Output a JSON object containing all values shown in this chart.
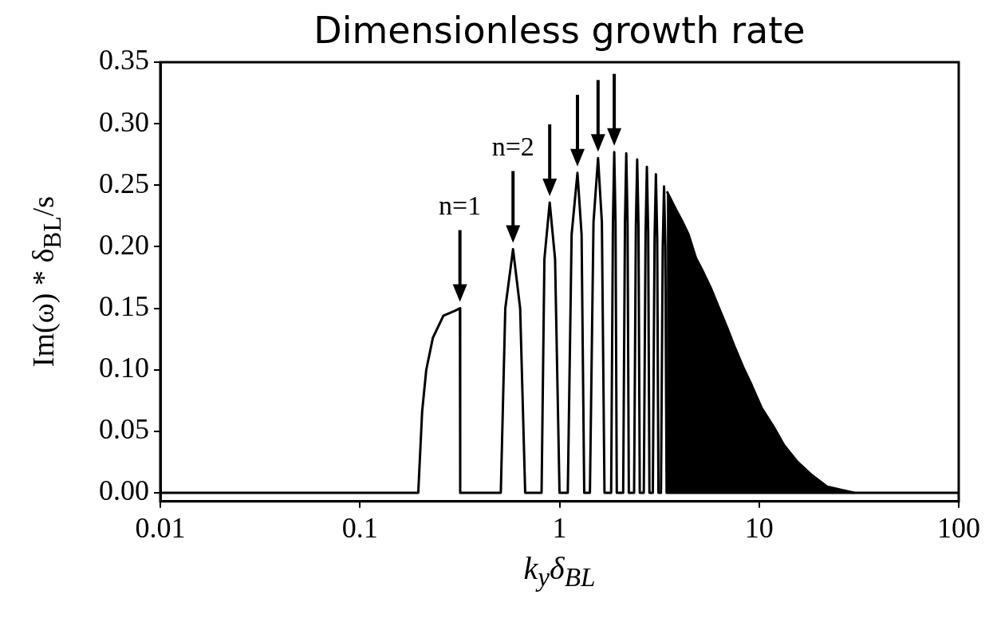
{
  "chart_data": {
    "type": "line",
    "title": "Dimensionless growth rate",
    "xlabel": "k$_{y}$δ$_{BL}$",
    "ylabel": "Im(ω) * δ$_{BL}$/s",
    "log": "x",
    "xlim": [
      0.01,
      100
    ],
    "xticks": [
      0.01,
      0.1,
      1,
      10,
      100
    ],
    "ylim": [
      -0.007,
      0.35
    ],
    "yticks": [
      {
        "value": 0,
        "label": "0.00"
      },
      {
        "value": 0.05,
        "label": "0.05"
      },
      {
        "value": 0.1,
        "label": "0.10"
      },
      {
        "value": 0.15,
        "label": "0.15"
      },
      {
        "value": 0.2,
        "label": "0.20"
      },
      {
        "value": 0.25,
        "label": "0.25"
      },
      {
        "value": 0.3,
        "label": "0.30"
      },
      {
        "value": 0.35,
        "label": "0.35"
      }
    ],
    "grid": false,
    "annotations": [
      "n=1",
      "n=2"
    ],
    "series": [
      {
        "color": "#000000",
        "x": [
          0.01,
          0.196,
          0.205,
          0.215,
          0.232,
          0.262,
          0.3,
          0.317,
          0.318,
          0.508,
          0.535,
          0.585,
          0.635,
          0.673,
          0.813,
          0.84,
          0.893,
          0.95,
          1.0,
          1.1,
          1.15,
          1.23,
          1.29,
          1.33,
          1.42,
          1.48,
          1.56,
          1.63,
          1.68,
          1.814,
          1.852,
          1.88,
          1.908,
          1.936,
          2.084,
          2.128,
          2.16,
          2.192,
          2.225,
          2.364,
          2.413,
          2.45,
          2.487,
          2.524,
          2.644,
          2.699,
          2.74,
          2.781,
          2.822,
          2.934,
          2.994,
          3.04,
          3.086,
          3.131,
          3.223,
          3.29,
          3.34,
          3.39,
          3.44,
          100
        ],
        "values": [
          0,
          0,
          0.066,
          0.1,
          0.126,
          0.144,
          0.148,
          0.15,
          0,
          0,
          0.15,
          0.198,
          0.15,
          0,
          0,
          0.19,
          0.236,
          0.19,
          0,
          0,
          0.21,
          0.26,
          0.21,
          0,
          0,
          0.22,
          0.272,
          0.22,
          0,
          0,
          0.22,
          0.277,
          0.22,
          0,
          0,
          0.22,
          0.276,
          0.22,
          0,
          0,
          0.217,
          0.271,
          0.217,
          0,
          0,
          0.212,
          0.265,
          0.212,
          0,
          0,
          0.207,
          0.259,
          0.207,
          0,
          0,
          0.2,
          0.249,
          0.2,
          0,
          0
        ]
      },
      {
        "type": "area",
        "color": "#000000",
        "x": [
          3.45,
          3.84,
          4.14,
          4.43,
          4.82,
          5.19,
          5.71,
          6.27,
          6.89,
          7.57,
          8.33,
          9.15,
          10.3,
          11.8,
          13.3,
          15.6,
          18.2,
          21.9,
          26.5,
          30
        ],
        "values": [
          0.245,
          0.23,
          0.22,
          0.21,
          0.191,
          0.181,
          0.167,
          0.151,
          0.135,
          0.118,
          0.102,
          0.088,
          0.069,
          0.054,
          0.039,
          0.025,
          0.015,
          0.005,
          0.002,
          0
        ]
      }
    ]
  }
}
